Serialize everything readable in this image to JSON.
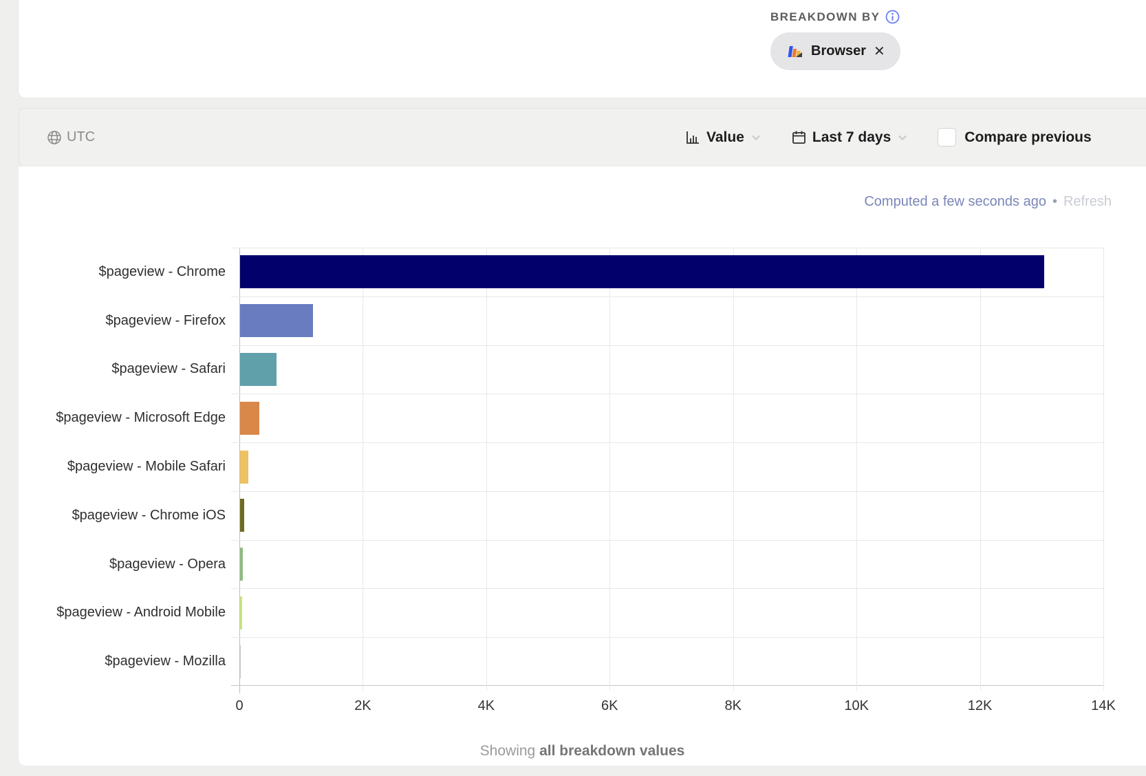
{
  "breakdown": {
    "label": "BREAKDOWN BY",
    "chip": {
      "label": "Browser",
      "close": "✕"
    }
  },
  "toolbar": {
    "timezone": "UTC",
    "value": {
      "label": "Value"
    },
    "date_range": {
      "label": "Last 7 days"
    },
    "compare": {
      "label": "Compare previous",
      "checked": false
    }
  },
  "status": {
    "computed": "Computed a few seconds ago",
    "separator": "•",
    "refresh": "Refresh"
  },
  "footer": {
    "prefix": "Showing ",
    "emphasis": "all breakdown values"
  },
  "accents": {
    "info_icon": "#6b7ff2",
    "status_link": "#7a86b8",
    "chip_icon_colors": [
      "#2f54ee",
      "#ef7b2d",
      "#f0b429",
      "#3f3f3f"
    ]
  },
  "chart_data": {
    "type": "bar",
    "orientation": "horizontal",
    "title": "",
    "xlabel": "",
    "ylabel": "",
    "categories": [
      "$pageview - Chrome",
      "$pageview - Firefox",
      "$pageview - Safari",
      "$pageview - Microsoft Edge",
      "$pageview - Mobile Safari",
      "$pageview - Chrome iOS",
      "$pageview - Opera",
      "$pageview - Android Mobile",
      "$pageview - Mozilla"
    ],
    "values": [
      13030,
      1184,
      593,
      312,
      134,
      67,
      45,
      38,
      2
    ],
    "colors": [
      "#02016b",
      "#6a7cc0",
      "#5fa0ab",
      "#d9884a",
      "#eec262",
      "#6f6b21",
      "#8fbc84",
      "#c9e67a",
      "#cccccc"
    ],
    "x_ticks": {
      "labels": [
        "0",
        "2K",
        "4K",
        "6K",
        "8K",
        "10K",
        "12K",
        "14K"
      ],
      "values": [
        0,
        2000,
        4000,
        6000,
        8000,
        10000,
        12000,
        14000
      ]
    },
    "xlim": [
      0,
      14000
    ],
    "grid": true,
    "legend": false
  }
}
